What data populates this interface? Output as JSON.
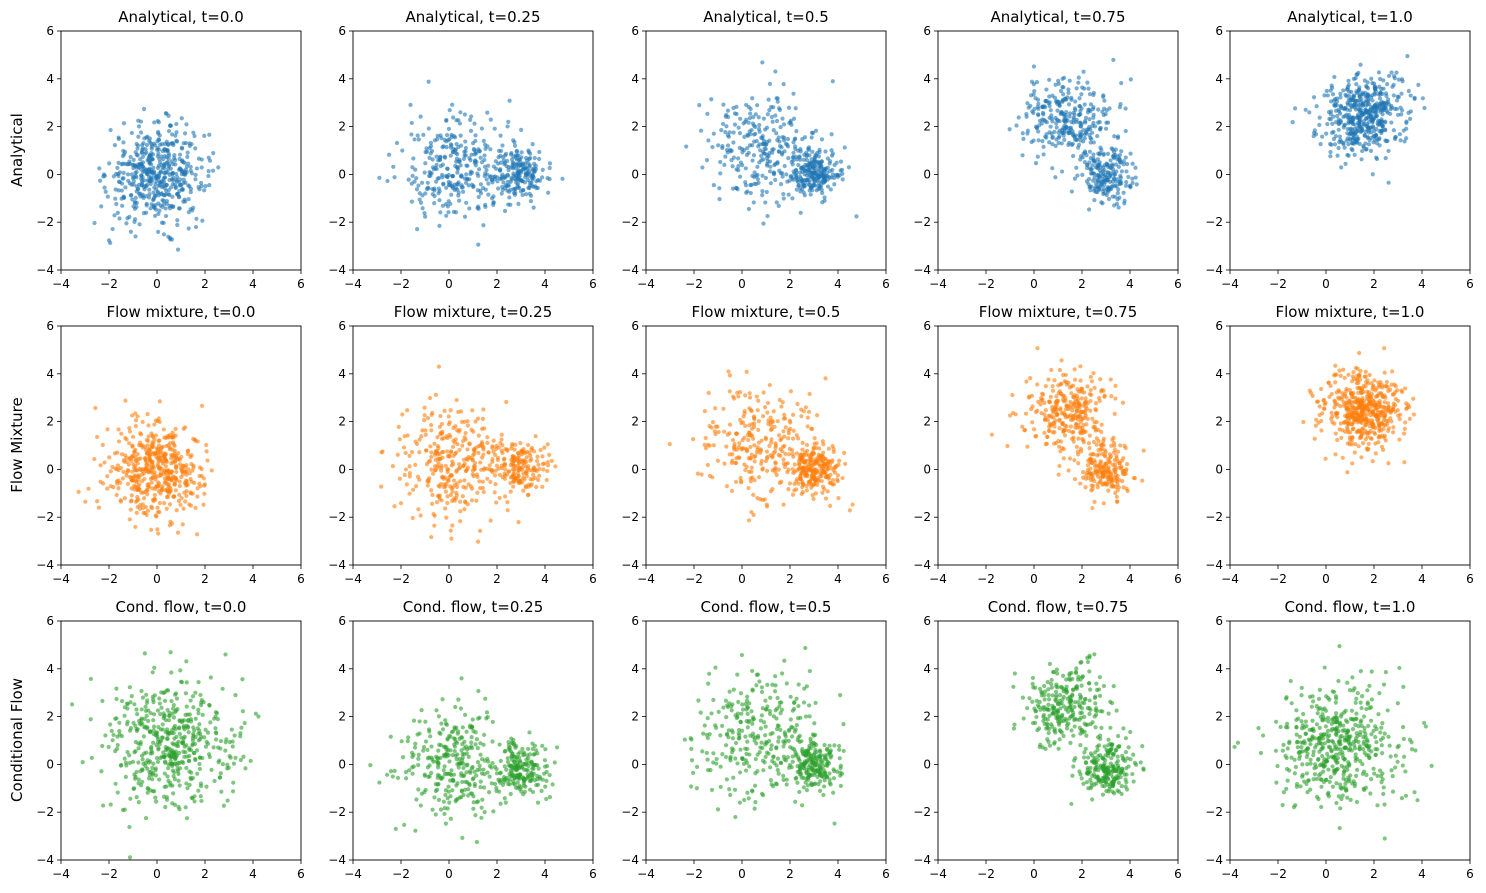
{
  "figure": {
    "row_labels": [
      "Analytical",
      "Flow Mixture",
      "Conditional Flow"
    ],
    "row_colors": [
      "#1f77b4",
      "#ff7f0e",
      "#2ca02c"
    ],
    "times": [
      "0.0",
      "0.25",
      "0.5",
      "0.75",
      "1.0"
    ]
  },
  "chart_data": [
    {
      "type": "scatter",
      "row": 0,
      "col": 0,
      "title": "Analytical, t=0.0",
      "color": "#1f77b4",
      "xlim": [
        -4,
        6
      ],
      "ylim": [
        -4,
        6
      ],
      "xticks": [
        -4,
        -2,
        0,
        2,
        4,
        6
      ],
      "yticks": [
        -4,
        -2,
        0,
        2,
        4,
        6
      ],
      "n_points": 500,
      "clusters": [
        {
          "center": [
            0,
            0
          ],
          "std": 1,
          "weight": 1
        }
      ]
    },
    {
      "type": "scatter",
      "row": 0,
      "col": 1,
      "title": "Analytical, t=0.25",
      "color": "#1f77b4",
      "xlim": [
        -4,
        6
      ],
      "ylim": [
        -4,
        6
      ],
      "xticks": [
        -4,
        -2,
        0,
        2,
        4,
        6
      ],
      "yticks": [
        -4,
        -2,
        0,
        2,
        4,
        6
      ],
      "n_points": 500,
      "clusters": [
        {
          "center": [
            0.3,
            0.4
          ],
          "std": 1.1,
          "weight": 0.62
        },
        {
          "center": [
            3,
            0
          ],
          "std": 0.55,
          "weight": 0.38
        }
      ]
    },
    {
      "type": "scatter",
      "row": 0,
      "col": 2,
      "title": "Analytical, t=0.5",
      "color": "#1f77b4",
      "xlim": [
        -4,
        6
      ],
      "ylim": [
        -4,
        6
      ],
      "xticks": [
        -4,
        -2,
        0,
        2,
        4,
        6
      ],
      "yticks": [
        -4,
        -2,
        0,
        2,
        4,
        6
      ],
      "n_points": 500,
      "clusters": [
        {
          "center": [
            0.9,
            1.1
          ],
          "std": 1.2,
          "weight": 0.55
        },
        {
          "center": [
            3,
            0
          ],
          "std": 0.55,
          "weight": 0.45
        }
      ]
    },
    {
      "type": "scatter",
      "row": 0,
      "col": 3,
      "title": "Analytical, t=0.75",
      "color": "#1f77b4",
      "xlim": [
        -4,
        6
      ],
      "ylim": [
        -4,
        6
      ],
      "xticks": [
        -4,
        -2,
        0,
        2,
        4,
        6
      ],
      "yticks": [
        -4,
        -2,
        0,
        2,
        4,
        6
      ],
      "n_points": 500,
      "clusters": [
        {
          "center": [
            1.4,
            2.3
          ],
          "std": 0.9,
          "weight": 0.6
        },
        {
          "center": [
            3,
            0
          ],
          "std": 0.55,
          "weight": 0.4
        }
      ]
    },
    {
      "type": "scatter",
      "row": 0,
      "col": 4,
      "title": "Analytical, t=1.0",
      "color": "#1f77b4",
      "xlim": [
        -4,
        6
      ],
      "ylim": [
        -4,
        6
      ],
      "xticks": [
        -4,
        -2,
        0,
        2,
        4,
        6
      ],
      "yticks": [
        -4,
        -2,
        0,
        2,
        4,
        6
      ],
      "n_points": 500,
      "clusters": [
        {
          "center": [
            1.6,
            2.5
          ],
          "std": 0.85,
          "weight": 1
        }
      ]
    },
    {
      "type": "scatter",
      "row": 1,
      "col": 0,
      "title": "Flow mixture, t=0.0",
      "color": "#ff7f0e",
      "xlim": [
        -4,
        6
      ],
      "ylim": [
        -4,
        6
      ],
      "xticks": [
        -4,
        -2,
        0,
        2,
        4,
        6
      ],
      "yticks": [
        -4,
        -2,
        0,
        2,
        4,
        6
      ],
      "n_points": 500,
      "clusters": [
        {
          "center": [
            0,
            0
          ],
          "std": 1,
          "weight": 1
        }
      ]
    },
    {
      "type": "scatter",
      "row": 1,
      "col": 1,
      "title": "Flow mixture, t=0.25",
      "color": "#ff7f0e",
      "xlim": [
        -4,
        6
      ],
      "ylim": [
        -4,
        6
      ],
      "xticks": [
        -4,
        -2,
        0,
        2,
        4,
        6
      ],
      "yticks": [
        -4,
        -2,
        0,
        2,
        4,
        6
      ],
      "n_points": 500,
      "clusters": [
        {
          "center": [
            0.1,
            0.3
          ],
          "std": 1.15,
          "weight": 0.65
        },
        {
          "center": [
            3,
            0.1
          ],
          "std": 0.55,
          "weight": 0.35
        }
      ]
    },
    {
      "type": "scatter",
      "row": 1,
      "col": 2,
      "title": "Flow mixture, t=0.5",
      "color": "#ff7f0e",
      "xlim": [
        -4,
        6
      ],
      "ylim": [
        -4,
        6
      ],
      "xticks": [
        -4,
        -2,
        0,
        2,
        4,
        6
      ],
      "yticks": [
        -4,
        -2,
        0,
        2,
        4,
        6
      ],
      "n_points": 500,
      "clusters": [
        {
          "center": [
            0.9,
            1.2
          ],
          "std": 1.2,
          "weight": 0.55
        },
        {
          "center": [
            3,
            0
          ],
          "std": 0.55,
          "weight": 0.45
        }
      ]
    },
    {
      "type": "scatter",
      "row": 1,
      "col": 3,
      "title": "Flow mixture, t=0.75",
      "color": "#ff7f0e",
      "xlim": [
        -4,
        6
      ],
      "ylim": [
        -4,
        6
      ],
      "xticks": [
        -4,
        -2,
        0,
        2,
        4,
        6
      ],
      "yticks": [
        -4,
        -2,
        0,
        2,
        4,
        6
      ],
      "n_points": 500,
      "clusters": [
        {
          "center": [
            1.4,
            2.4
          ],
          "std": 0.85,
          "weight": 0.6
        },
        {
          "center": [
            3,
            0
          ],
          "std": 0.55,
          "weight": 0.4
        }
      ]
    },
    {
      "type": "scatter",
      "row": 1,
      "col": 4,
      "title": "Flow mixture, t=1.0",
      "color": "#ff7f0e",
      "xlim": [
        -4,
        6
      ],
      "ylim": [
        -4,
        6
      ],
      "xticks": [
        -4,
        -2,
        0,
        2,
        4,
        6
      ],
      "yticks": [
        -4,
        -2,
        0,
        2,
        4,
        6
      ],
      "n_points": 500,
      "clusters": [
        {
          "center": [
            1.5,
            2.4
          ],
          "std": 0.85,
          "weight": 1
        }
      ]
    },
    {
      "type": "scatter",
      "row": 2,
      "col": 0,
      "title": "Cond. flow, t=0.0",
      "color": "#2ca02c",
      "xlim": [
        -4,
        6
      ],
      "ylim": [
        -4,
        6
      ],
      "xticks": [
        -4,
        -2,
        0,
        2,
        4,
        6
      ],
      "yticks": [
        -4,
        -2,
        0,
        2,
        4,
        6
      ],
      "n_points": 500,
      "clusters": [
        {
          "center": [
            0.6,
            0.8
          ],
          "std": 1.3,
          "weight": 1
        }
      ]
    },
    {
      "type": "scatter",
      "row": 2,
      "col": 1,
      "title": "Cond. flow, t=0.25",
      "color": "#2ca02c",
      "xlim": [
        -4,
        6
      ],
      "ylim": [
        -4,
        6
      ],
      "xticks": [
        -4,
        -2,
        0,
        2,
        4,
        6
      ],
      "yticks": [
        -4,
        -2,
        0,
        2,
        4,
        6
      ],
      "n_points": 500,
      "clusters": [
        {
          "center": [
            0.1,
            0
          ],
          "std": 1.1,
          "weight": 0.62
        },
        {
          "center": [
            3,
            -0.2
          ],
          "std": 0.6,
          "weight": 0.38
        }
      ]
    },
    {
      "type": "scatter",
      "row": 2,
      "col": 2,
      "title": "Cond. flow, t=0.5",
      "color": "#2ca02c",
      "xlim": [
        -4,
        6
      ],
      "ylim": [
        -4,
        6
      ],
      "xticks": [
        -4,
        -2,
        0,
        2,
        4,
        6
      ],
      "yticks": [
        -4,
        -2,
        0,
        2,
        4,
        6
      ],
      "n_points": 500,
      "clusters": [
        {
          "center": [
            0.6,
            1.2
          ],
          "std": 1.35,
          "weight": 0.6
        },
        {
          "center": [
            3,
            0
          ],
          "std": 0.55,
          "weight": 0.4
        }
      ]
    },
    {
      "type": "scatter",
      "row": 2,
      "col": 3,
      "title": "Cond. flow, t=0.75",
      "color": "#2ca02c",
      "xlim": [
        -4,
        6
      ],
      "ylim": [
        -4,
        6
      ],
      "xticks": [
        -4,
        -2,
        0,
        2,
        4,
        6
      ],
      "yticks": [
        -4,
        -2,
        0,
        2,
        4,
        6
      ],
      "n_points": 500,
      "clusters": [
        {
          "center": [
            1.4,
            2.4
          ],
          "std": 0.85,
          "weight": 0.55
        },
        {
          "center": [
            3,
            -0.2
          ],
          "std": 0.55,
          "weight": 0.45
        }
      ]
    },
    {
      "type": "scatter",
      "row": 2,
      "col": 4,
      "title": "Cond. flow, t=1.0",
      "color": "#2ca02c",
      "xlim": [
        -4,
        6
      ],
      "ylim": [
        -4,
        6
      ],
      "xticks": [
        -4,
        -2,
        0,
        2,
        4,
        6
      ],
      "yticks": [
        -4,
        -2,
        0,
        2,
        4,
        6
      ],
      "n_points": 500,
      "clusters": [
        {
          "center": [
            0.6,
            0.8
          ],
          "std": 1.3,
          "weight": 1
        }
      ]
    }
  ]
}
